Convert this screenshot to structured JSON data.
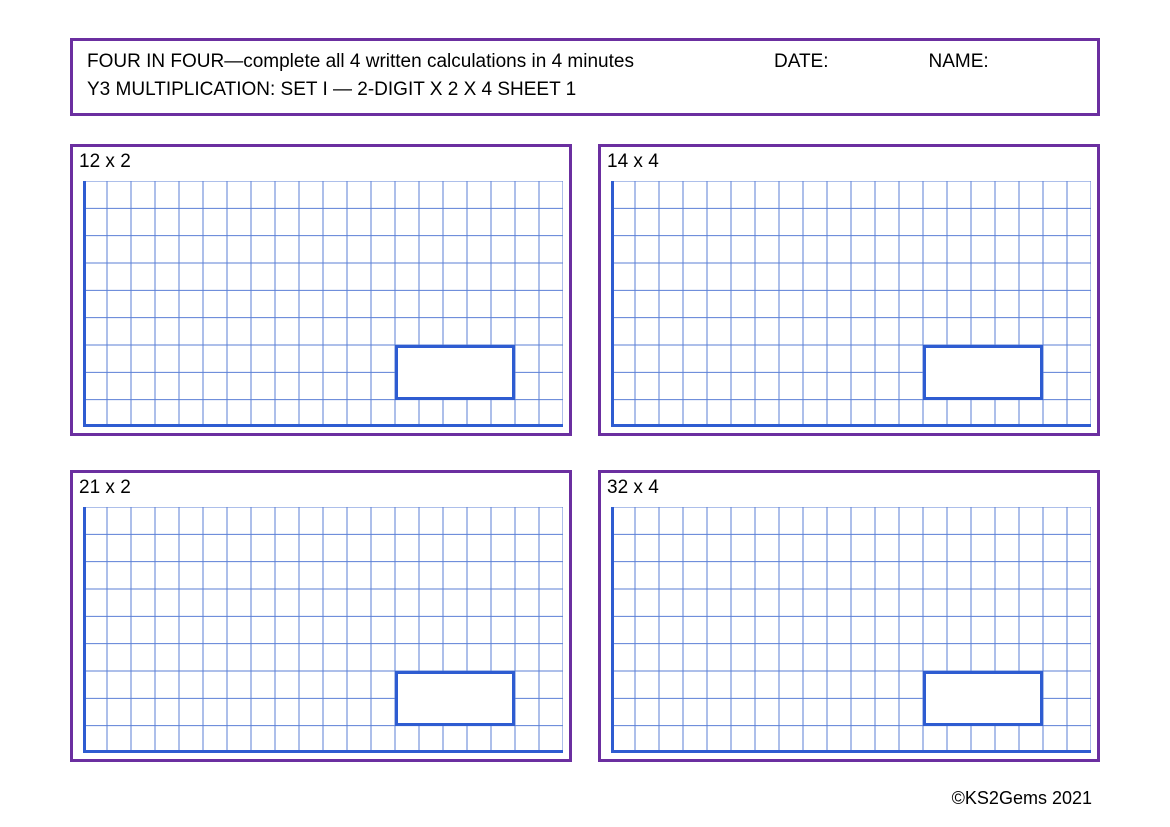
{
  "header": {
    "title": "FOUR IN FOUR—complete all 4 written calculations in 4 minutes",
    "date_label": "DATE:",
    "name_label": "NAME:",
    "subtitle": "Y3 MULTIPLICATION: SET I — 2-DIGIT X 2 X 4  SHEET 1"
  },
  "questions": [
    {
      "label": "12 x 2"
    },
    {
      "label": "14 x 4"
    },
    {
      "label": "21 x 2"
    },
    {
      "label": "32 x 4"
    }
  ],
  "footer": "©KS2Gems 2021",
  "style": {
    "border_color": "#6b2fa0",
    "grid_line_color": "#5b7fd6",
    "grid_axis_color": "#2e5cd1",
    "answer_box_border": "#2e5cd1",
    "background": "#ffffff",
    "font_size_pt": 14,
    "grid": {
      "cols": 20,
      "rows": 9,
      "answer_box": {
        "right_cells": 2,
        "bottom_cells": 1,
        "width_cells": 5,
        "height_cells": 2
      }
    }
  }
}
